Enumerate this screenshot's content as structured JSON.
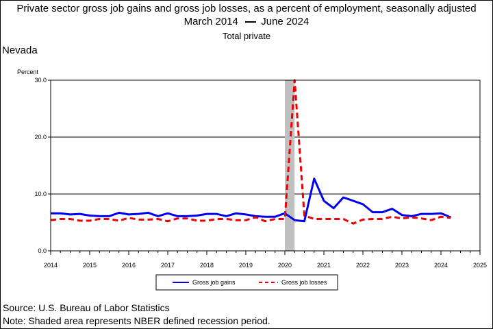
{
  "header": {
    "title_line1": "Private sector gross job gains and gross job losses, as a percent of employment, seasonally adjusted",
    "title_line2_prefix": "March 2014",
    "title_line2_suffix": "June 2024",
    "subtitle": "Total private",
    "region": "Nevada",
    "ylabel": "Percent"
  },
  "footer": {
    "source": "Source: U.S. Bureau of Labor Statistics",
    "note": "Note: Shaded area represents NBER defined recession period."
  },
  "colors": {
    "gains": "#0000ee",
    "losses": "#ee0000",
    "recession": "#c0c0c0"
  },
  "chart_data": {
    "type": "line",
    "xlim": [
      2014,
      2025
    ],
    "ylim": [
      0,
      30
    ],
    "x_ticks": [
      "2014",
      "2015",
      "2016",
      "2017",
      "2018",
      "2019",
      "2020",
      "2021",
      "2022",
      "2023",
      "2024",
      "2025"
    ],
    "y_ticks": [
      "0.0",
      "10.0",
      "20.0",
      "30.0"
    ],
    "grid": true,
    "recession": [
      2020.0,
      2020.25
    ],
    "legend_position": "bottom",
    "series": [
      {
        "name": "Gross job gains",
        "style": "solid",
        "x": [
          2014.0,
          2014.25,
          2014.5,
          2014.75,
          2015.0,
          2015.25,
          2015.5,
          2015.75,
          2016.0,
          2016.25,
          2016.5,
          2016.75,
          2017.0,
          2017.25,
          2017.5,
          2017.75,
          2018.0,
          2018.25,
          2018.5,
          2018.75,
          2019.0,
          2019.25,
          2019.5,
          2019.75,
          2020.0,
          2020.25,
          2020.5,
          2020.75,
          2021.0,
          2021.25,
          2021.5,
          2021.75,
          2022.0,
          2022.25,
          2022.5,
          2022.75,
          2023.0,
          2023.25,
          2023.5,
          2023.75,
          2024.0,
          2024.25
        ],
        "values": [
          6.6,
          6.6,
          6.4,
          6.5,
          6.2,
          6.1,
          6.1,
          6.7,
          6.4,
          6.5,
          6.7,
          6.1,
          6.6,
          6.1,
          6.1,
          6.2,
          6.5,
          6.5,
          6.1,
          6.6,
          6.4,
          6.1,
          6.0,
          6.0,
          6.6,
          5.4,
          5.2,
          12.7,
          8.8,
          7.5,
          9.4,
          8.8,
          8.2,
          6.8,
          6.8,
          7.4,
          6.3,
          6.1,
          6.5,
          6.5,
          6.6,
          5.9
        ]
      },
      {
        "name": "Gross job losses",
        "style": "dashed",
        "x": [
          2014.0,
          2014.25,
          2014.5,
          2014.75,
          2015.0,
          2015.25,
          2015.5,
          2015.75,
          2016.0,
          2016.25,
          2016.5,
          2016.75,
          2017.0,
          2017.25,
          2017.5,
          2017.75,
          2018.0,
          2018.25,
          2018.5,
          2018.75,
          2019.0,
          2019.25,
          2019.5,
          2019.75,
          2020.0,
          2020.25,
          2020.5,
          2020.75,
          2021.0,
          2021.25,
          2021.5,
          2021.75,
          2022.0,
          2022.25,
          2022.5,
          2022.75,
          2023.0,
          2023.25,
          2023.5,
          2023.75,
          2024.0,
          2024.25
        ],
        "values": [
          5.4,
          5.6,
          5.6,
          5.3,
          5.3,
          5.6,
          5.6,
          5.3,
          5.8,
          5.5,
          5.5,
          5.6,
          5.2,
          5.7,
          5.7,
          5.3,
          5.3,
          5.6,
          5.6,
          5.4,
          5.4,
          5.9,
          5.2,
          5.6,
          5.6,
          30.0,
          6.2,
          5.6,
          5.6,
          5.6,
          5.6,
          4.8,
          5.5,
          5.6,
          5.6,
          6.0,
          5.7,
          5.9,
          5.7,
          5.4,
          6.0,
          5.8
        ]
      }
    ]
  }
}
